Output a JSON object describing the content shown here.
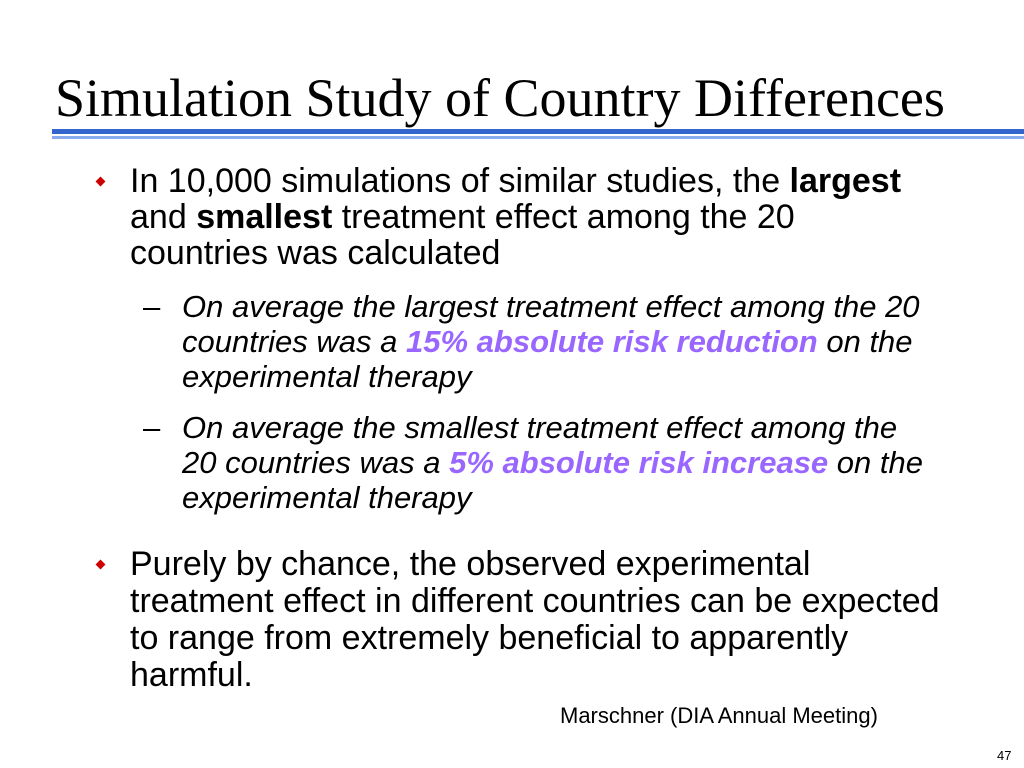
{
  "slide": {
    "title": "Simulation Study of Country Differences",
    "sub_bullet_marker": "–",
    "bullets": [
      {
        "lines": [
          [
            "In 10,000 simulations of similar studies, the ",
            "largest"
          ],
          [
            "and ",
            "smallest",
            " treatment effect among the 20"
          ],
          [
            "countries was calculated"
          ]
        ],
        "sub_bullets": [
          {
            "lines": [
              [
                "On average the largest treatment effect among the 20"
              ],
              [
                "countries was a ",
                "15% absolute risk reduction",
                " on the"
              ],
              [
                "experimental therapy"
              ]
            ]
          },
          {
            "lines": [
              [
                "On average the smallest treatment effect among the"
              ],
              [
                "20 countries was a ",
                "5% absolute risk increase",
                " on the"
              ],
              [
                "experimental therapy"
              ]
            ]
          }
        ]
      },
      {
        "lines": [
          [
            "Purely by chance, the observed experimental"
          ],
          [
            "treatment effect in different countries can be expected"
          ],
          [
            "to range from extremely beneficial to apparently"
          ],
          [
            "harmful."
          ]
        ]
      }
    ],
    "footer": "Marschner (DIA Annual Meeting)",
    "page_number": "47"
  },
  "icons": {
    "bullet": "red-diamond",
    "title_rule": "double-blue-rule"
  },
  "colors": {
    "text": "#000000",
    "bullet": "#CC0000",
    "highlight": "#9966FF",
    "title_rule": "#3366CC",
    "title_rule_light": "#88AAEE",
    "background": "#FFFFFF"
  }
}
